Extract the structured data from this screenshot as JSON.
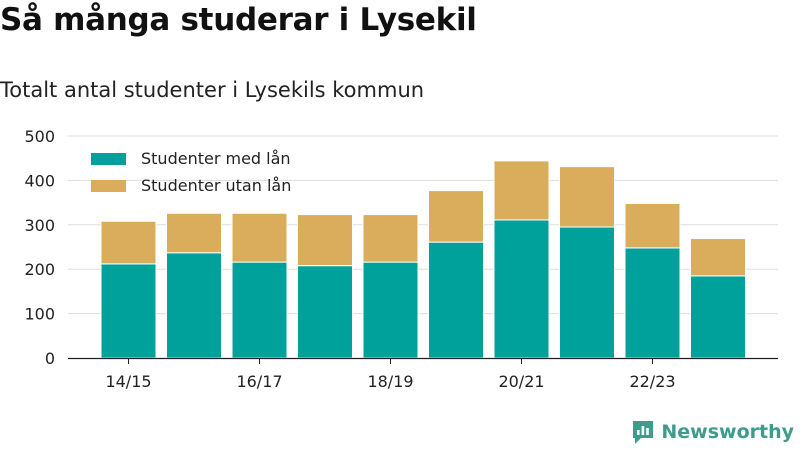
{
  "title": "Så många studerar i Lysekil",
  "subtitle": "Totalt antal studenter i Lysekils kommun",
  "brand": "Newsworthy",
  "chart_data": {
    "type": "bar",
    "stacked": true,
    "categories": [
      "14/15",
      "15/16",
      "16/17",
      "17/18",
      "18/19",
      "19/20",
      "20/21",
      "21/22",
      "22/23",
      "23/24"
    ],
    "x_tick_labels": [
      "14/15",
      "",
      "16/17",
      "",
      "18/19",
      "",
      "20/21",
      "",
      "22/23",
      ""
    ],
    "series": [
      {
        "name": "Studenter med lån",
        "color": "#00a19a",
        "values": [
          212,
          237,
          216,
          208,
          216,
          261,
          311,
          295,
          248,
          185
        ]
      },
      {
        "name": "Studenter utan lån",
        "color": "#d9ad5b",
        "values": [
          96,
          89,
          110,
          115,
          107,
          116,
          133,
          136,
          100,
          84
        ]
      }
    ],
    "ylim": [
      0,
      500
    ],
    "yticks": [
      0,
      100,
      200,
      300,
      400,
      500
    ],
    "grid": true,
    "legend": "top-left",
    "xlabel": "",
    "ylabel": ""
  }
}
